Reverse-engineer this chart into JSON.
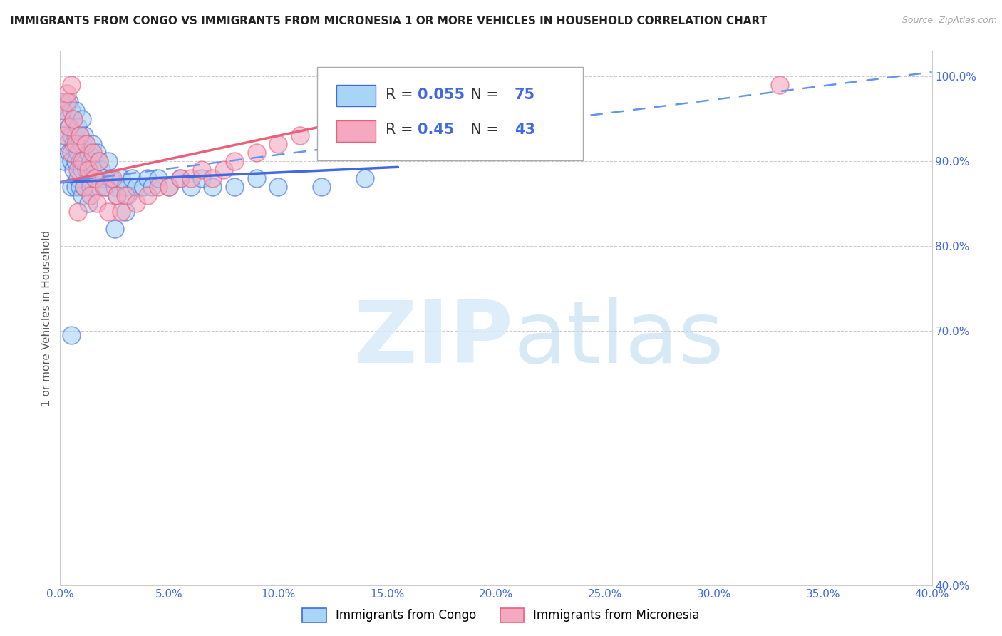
{
  "title": "IMMIGRANTS FROM CONGO VS IMMIGRANTS FROM MICRONESIA 1 OR MORE VEHICLES IN HOUSEHOLD CORRELATION CHART",
  "source_text": "Source: ZipAtlas.com",
  "ylabel": "1 or more Vehicles in Household",
  "legend_label_1": "Immigrants from Congo",
  "legend_label_2": "Immigrants from Micronesia",
  "R1": 0.055,
  "N1": 75,
  "R2": 0.45,
  "N2": 43,
  "xlim": [
    0.0,
    0.4
  ],
  "ylim": [
    0.4,
    1.03
  ],
  "xticks": [
    0.0,
    0.05,
    0.1,
    0.15,
    0.2,
    0.25,
    0.3,
    0.35,
    0.4
  ],
  "yticks": [
    0.4,
    0.7,
    0.8,
    0.9,
    1.0
  ],
  "color_congo": "#a8d4f5",
  "color_micronesia": "#f5a8c0",
  "color_line_congo": "#4169E1",
  "color_line_micronesia": "#e8607a",
  "color_dashed": "#6495ED",
  "watermark_color": "#d8eaf8",
  "congo_scatter_x": [
    0.001,
    0.001,
    0.002,
    0.002,
    0.003,
    0.003,
    0.004,
    0.004,
    0.004,
    0.005,
    0.005,
    0.005,
    0.005,
    0.006,
    0.006,
    0.006,
    0.007,
    0.007,
    0.007,
    0.007,
    0.008,
    0.008,
    0.008,
    0.009,
    0.009,
    0.009,
    0.01,
    0.01,
    0.01,
    0.01,
    0.011,
    0.011,
    0.011,
    0.012,
    0.012,
    0.013,
    0.013,
    0.013,
    0.014,
    0.014,
    0.015,
    0.015,
    0.016,
    0.017,
    0.018,
    0.018,
    0.019,
    0.02,
    0.021,
    0.022,
    0.023,
    0.025,
    0.026,
    0.028,
    0.03,
    0.031,
    0.033,
    0.035,
    0.038,
    0.04,
    0.042,
    0.045,
    0.05,
    0.055,
    0.06,
    0.065,
    0.07,
    0.08,
    0.09,
    0.1,
    0.12,
    0.14,
    0.025,
    0.03,
    0.005
  ],
  "congo_scatter_y": [
    0.97,
    0.93,
    0.96,
    0.9,
    0.95,
    0.92,
    0.97,
    0.94,
    0.91,
    0.96,
    0.93,
    0.9,
    0.87,
    0.95,
    0.92,
    0.89,
    0.96,
    0.93,
    0.9,
    0.87,
    0.94,
    0.91,
    0.88,
    0.93,
    0.9,
    0.87,
    0.95,
    0.92,
    0.89,
    0.86,
    0.93,
    0.9,
    0.87,
    0.92,
    0.89,
    0.91,
    0.88,
    0.85,
    0.9,
    0.87,
    0.92,
    0.89,
    0.88,
    0.91,
    0.9,
    0.87,
    0.89,
    0.88,
    0.87,
    0.9,
    0.88,
    0.87,
    0.86,
    0.88,
    0.87,
    0.86,
    0.88,
    0.87,
    0.87,
    0.88,
    0.87,
    0.88,
    0.87,
    0.88,
    0.87,
    0.88,
    0.87,
    0.87,
    0.88,
    0.87,
    0.87,
    0.88,
    0.82,
    0.84,
    0.695
  ],
  "micronesia_scatter_x": [
    0.001,
    0.002,
    0.003,
    0.004,
    0.005,
    0.006,
    0.007,
    0.008,
    0.009,
    0.01,
    0.011,
    0.012,
    0.013,
    0.014,
    0.015,
    0.016,
    0.017,
    0.018,
    0.02,
    0.022,
    0.024,
    0.026,
    0.028,
    0.03,
    0.035,
    0.04,
    0.045,
    0.05,
    0.055,
    0.06,
    0.065,
    0.07,
    0.075,
    0.08,
    0.09,
    0.1,
    0.11,
    0.13,
    0.15,
    0.003,
    0.005,
    0.33,
    0.008
  ],
  "micronesia_scatter_y": [
    0.96,
    0.93,
    0.97,
    0.94,
    0.91,
    0.95,
    0.92,
    0.89,
    0.93,
    0.9,
    0.87,
    0.92,
    0.89,
    0.86,
    0.91,
    0.88,
    0.85,
    0.9,
    0.87,
    0.84,
    0.88,
    0.86,
    0.84,
    0.86,
    0.85,
    0.86,
    0.87,
    0.87,
    0.88,
    0.88,
    0.89,
    0.88,
    0.89,
    0.9,
    0.91,
    0.92,
    0.93,
    0.94,
    0.96,
    0.98,
    0.99,
    0.99,
    0.84
  ],
  "congo_line_x0": 0.0,
  "congo_line_x1": 0.155,
  "congo_line_y0": 0.875,
  "congo_line_y1": 0.893,
  "micro_line_x0": 0.0,
  "micro_line_x1": 0.155,
  "micro_line_y0": 0.875,
  "micro_line_y1": 0.96,
  "dashed_line_x0": 0.0,
  "dashed_line_x1": 0.4,
  "dashed_line_y0": 0.875,
  "dashed_line_y1": 1.005
}
